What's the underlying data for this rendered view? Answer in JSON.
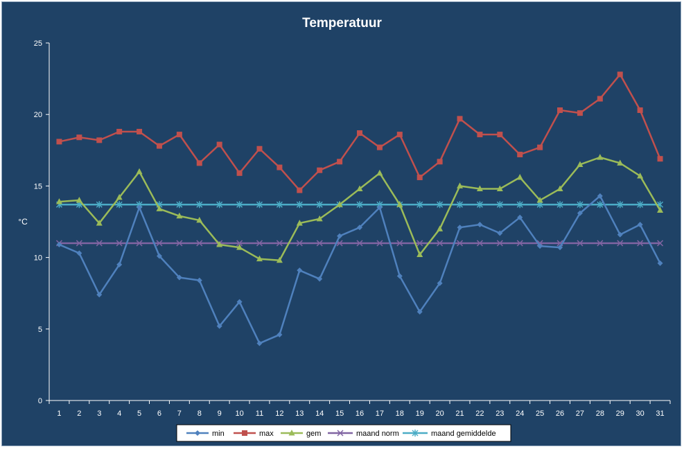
{
  "chart_data": {
    "type": "line",
    "title": "Temperatuur",
    "xlabel": "",
    "ylabel": "°C",
    "ylim": [
      0,
      25
    ],
    "yticks": [
      0,
      5,
      10,
      15,
      20,
      25
    ],
    "grid": false,
    "legend_position": "bottom",
    "categories": [
      "1",
      "2",
      "3",
      "4",
      "5",
      "6",
      "7",
      "8",
      "9",
      "10",
      "11",
      "12",
      "13",
      "14",
      "15",
      "16",
      "17",
      "18",
      "19",
      "20",
      "21",
      "22",
      "23",
      "24",
      "25",
      "26",
      "27",
      "28",
      "29",
      "30",
      "31"
    ],
    "series": [
      {
        "name": "min",
        "color": "#4f81bd",
        "marker": "diamond",
        "values": [
          10.9,
          10.3,
          7.4,
          9.5,
          13.5,
          10.1,
          8.6,
          8.4,
          5.2,
          6.9,
          4.0,
          4.6,
          9.1,
          8.5,
          11.5,
          12.1,
          13.5,
          8.7,
          6.2,
          8.2,
          12.1,
          12.3,
          11.7,
          12.8,
          10.8,
          10.7,
          13.1,
          14.3,
          11.6,
          12.3,
          9.6
        ]
      },
      {
        "name": "max",
        "color": "#c0504d",
        "marker": "square",
        "values": [
          18.1,
          18.4,
          18.2,
          18.8,
          18.8,
          17.8,
          18.6,
          16.6,
          17.9,
          15.9,
          17.6,
          16.3,
          14.7,
          16.1,
          16.7,
          18.7,
          17.7,
          18.6,
          15.6,
          16.7,
          19.7,
          18.6,
          18.6,
          17.2,
          17.7,
          20.3,
          20.1,
          21.1,
          22.8,
          20.3,
          16.9
        ]
      },
      {
        "name": "gem",
        "color": "#9bbb59",
        "marker": "triangle",
        "values": [
          13.9,
          14.0,
          12.4,
          14.2,
          16.0,
          13.4,
          12.9,
          12.6,
          10.9,
          10.7,
          9.9,
          9.8,
          12.4,
          12.7,
          13.7,
          14.8,
          15.9,
          13.7,
          10.2,
          12.0,
          15.0,
          14.8,
          14.8,
          15.6,
          14.0,
          14.8,
          16.5,
          17.0,
          16.6,
          15.7,
          13.3
        ]
      },
      {
        "name": "maand norm",
        "color": "#8064a2",
        "marker": "x",
        "values": [
          11.0,
          11.0,
          11.0,
          11.0,
          11.0,
          11.0,
          11.0,
          11.0,
          11.0,
          11.0,
          11.0,
          11.0,
          11.0,
          11.0,
          11.0,
          11.0,
          11.0,
          11.0,
          11.0,
          11.0,
          11.0,
          11.0,
          11.0,
          11.0,
          11.0,
          11.0,
          11.0,
          11.0,
          11.0,
          11.0,
          11.0
        ]
      },
      {
        "name": "maand gemiddelde",
        "color": "#4bacc6",
        "marker": "star",
        "values": [
          13.7,
          13.7,
          13.7,
          13.7,
          13.7,
          13.7,
          13.7,
          13.7,
          13.7,
          13.7,
          13.7,
          13.7,
          13.7,
          13.7,
          13.7,
          13.7,
          13.7,
          13.7,
          13.7,
          13.7,
          13.7,
          13.7,
          13.7,
          13.7,
          13.7,
          13.7,
          13.7,
          13.7,
          13.7,
          13.7,
          13.7
        ]
      }
    ]
  },
  "colors": {
    "background": "#1f4266",
    "axis": "#ffffff",
    "legend_background": "#ffffff"
  }
}
